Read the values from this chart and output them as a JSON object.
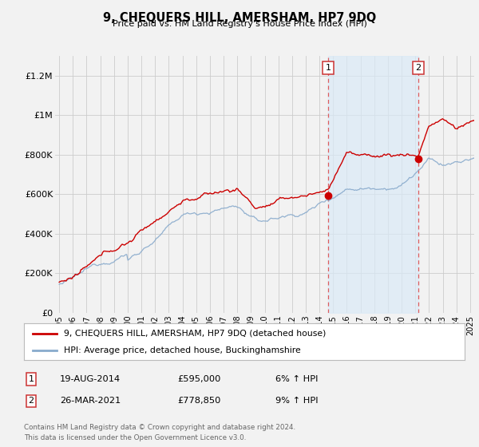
{
  "title": "9, CHEQUERS HILL, AMERSHAM, HP7 9DQ",
  "subtitle": "Price paid vs. HM Land Registry's House Price Index (HPI)",
  "background_color": "#f2f2f2",
  "plot_bg_color": "#f2f2f2",
  "line1_color": "#cc0000",
  "line2_color": "#88aacc",
  "marker_color": "#cc0000",
  "sale1_date_x": 2014.63,
  "sale1_price": 595000,
  "sale2_date_x": 2021.23,
  "sale2_price": 778850,
  "xlim": [
    1994.7,
    2025.3
  ],
  "ylim": [
    0,
    1300000
  ],
  "yticks": [
    0,
    200000,
    400000,
    600000,
    800000,
    1000000,
    1200000
  ],
  "ytick_labels": [
    "£0",
    "£200K",
    "£400K",
    "£600K",
    "£800K",
    "£1M",
    "£1.2M"
  ],
  "xtick_years": [
    1995,
    1996,
    1997,
    1998,
    1999,
    2000,
    2001,
    2002,
    2003,
    2004,
    2005,
    2006,
    2007,
    2008,
    2009,
    2010,
    2011,
    2012,
    2013,
    2014,
    2015,
    2016,
    2017,
    2018,
    2019,
    2020,
    2021,
    2022,
    2023,
    2024,
    2025
  ],
  "footnote1": "Contains HM Land Registry data © Crown copyright and database right 2024.",
  "footnote2": "This data is licensed under the Open Government Licence v3.0.",
  "legend_label1": "9, CHEQUERS HILL, AMERSHAM, HP7 9DQ (detached house)",
  "legend_label2": "HPI: Average price, detached house, Buckinghamshire",
  "table_row1": [
    "1",
    "19-AUG-2014",
    "£595,000",
    "6% ↑ HPI"
  ],
  "table_row2": [
    "2",
    "26-MAR-2021",
    "£778,850",
    "9% ↑ HPI"
  ],
  "shade_color": "#daeaf7",
  "vline_color": "#dd4444",
  "grid_color": "#cccccc"
}
